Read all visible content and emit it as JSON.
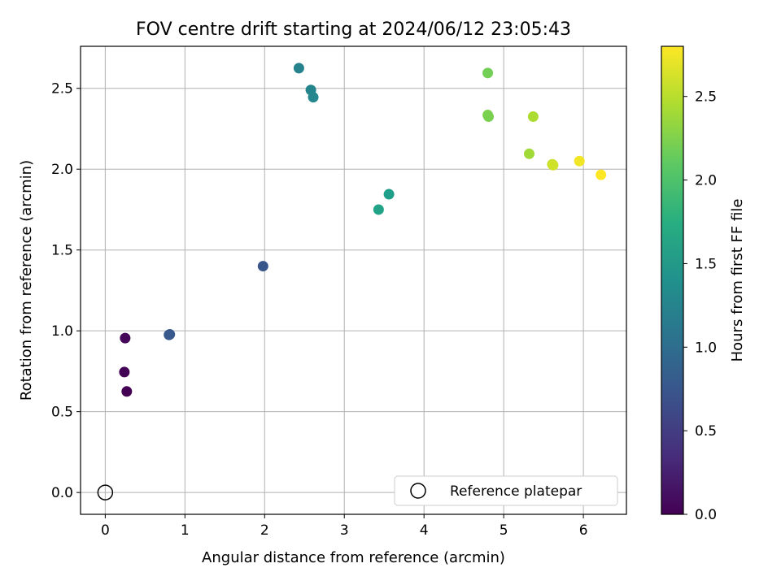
{
  "chart_data": {
    "type": "scatter",
    "title": "FOV centre drift starting at 2024/06/12 23:05:43",
    "xlabel": "Angular distance from reference (arcmin)",
    "ylabel": "Rotation from reference (arcmin)",
    "xlim": [
      -0.31,
      6.54
    ],
    "ylim": [
      -0.135,
      2.76
    ],
    "x_ticks": [
      0,
      1,
      2,
      3,
      4,
      5,
      6
    ],
    "x_tick_labels": [
      "0",
      "1",
      "2",
      "3",
      "4",
      "5",
      "6"
    ],
    "y_ticks": [
      0.0,
      0.5,
      1.0,
      1.5,
      2.0,
      2.5
    ],
    "y_tick_labels": [
      "0.0",
      "0.5",
      "1.0",
      "1.5",
      "2.0",
      "2.5"
    ],
    "grid": true,
    "colormap": "viridis",
    "colorbar": {
      "label": "Hours from first FF file",
      "range": [
        0.0,
        2.8
      ],
      "ticks": [
        0.0,
        0.5,
        1.0,
        1.5,
        2.0,
        2.5
      ],
      "tick_labels": [
        "0.0",
        "0.5",
        "1.0",
        "1.5",
        "2.0",
        "2.5"
      ]
    },
    "reference_point": {
      "x": 0,
      "y": 0,
      "label": "Reference platepar"
    },
    "legend": {
      "location": "lower-right",
      "entries": [
        "Reference platepar"
      ]
    },
    "points": [
      {
        "x": 0.25,
        "y": 0.955,
        "hours": 0.05
      },
      {
        "x": 0.24,
        "y": 0.745,
        "hours": 0.02
      },
      {
        "x": 0.27,
        "y": 0.625,
        "hours": 0.0
      },
      {
        "x": 0.8,
        "y": 0.975,
        "hours": 0.8
      },
      {
        "x": 0.81,
        "y": 0.978,
        "hours": 0.78
      },
      {
        "x": 1.98,
        "y": 1.4,
        "hours": 0.75
      },
      {
        "x": 2.43,
        "y": 2.625,
        "hours": 1.25
      },
      {
        "x": 2.58,
        "y": 2.49,
        "hours": 1.28
      },
      {
        "x": 2.61,
        "y": 2.445,
        "hours": 1.3
      },
      {
        "x": 3.43,
        "y": 1.75,
        "hours": 1.6
      },
      {
        "x": 3.56,
        "y": 1.845,
        "hours": 1.55
      },
      {
        "x": 4.8,
        "y": 2.595,
        "hours": 2.2
      },
      {
        "x": 4.8,
        "y": 2.335,
        "hours": 2.25
      },
      {
        "x": 4.81,
        "y": 2.325,
        "hours": 2.23
      },
      {
        "x": 5.37,
        "y": 2.325,
        "hours": 2.45
      },
      {
        "x": 5.32,
        "y": 2.095,
        "hours": 2.4
      },
      {
        "x": 5.61,
        "y": 2.03,
        "hours": 2.55
      },
      {
        "x": 5.62,
        "y": 2.025,
        "hours": 2.6
      },
      {
        "x": 5.95,
        "y": 2.05,
        "hours": 2.75
      },
      {
        "x": 6.22,
        "y": 1.965,
        "hours": 2.8
      }
    ]
  }
}
